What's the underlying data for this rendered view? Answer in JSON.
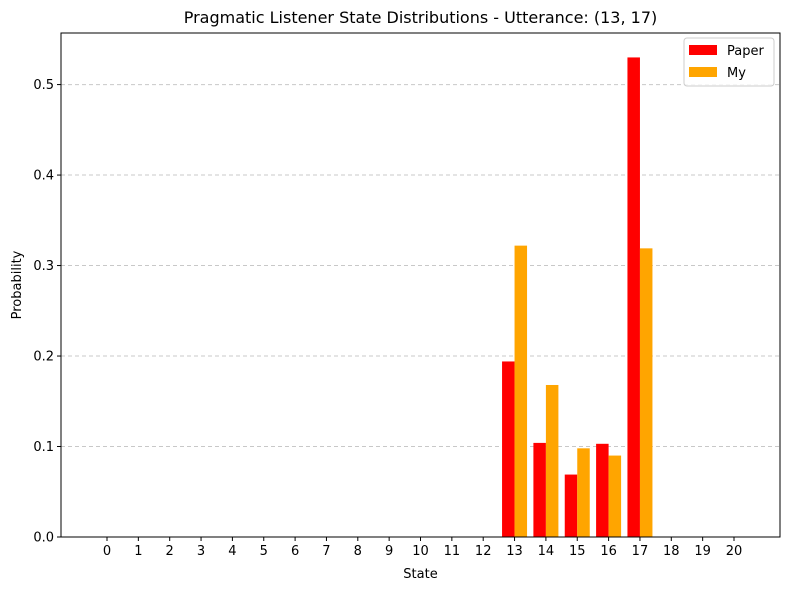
{
  "chart_data": {
    "type": "bar",
    "title": "Pragmatic Listener State Distributions - Utterance: (13, 17)",
    "xlabel": "State",
    "ylabel": "Probability",
    "categories": [
      "0",
      "1",
      "2",
      "3",
      "4",
      "5",
      "6",
      "7",
      "8",
      "9",
      "10",
      "11",
      "12",
      "13",
      "14",
      "15",
      "16",
      "17",
      "18",
      "19",
      "20"
    ],
    "series": [
      {
        "name": "Paper",
        "color": "#ff0000",
        "values": [
          0,
          0,
          0,
          0,
          0,
          0,
          0,
          0,
          0,
          0,
          0,
          0,
          0,
          0.194,
          0.104,
          0.069,
          0.103,
          0.53,
          0,
          0,
          0
        ]
      },
      {
        "name": "My",
        "color": "#ffa500",
        "values": [
          0,
          0,
          0,
          0,
          0,
          0,
          0,
          0,
          0,
          0,
          0,
          0,
          0,
          0.322,
          0.168,
          0.098,
          0.09,
          0.319,
          0,
          0,
          0
        ]
      }
    ],
    "yticks": [
      "0.0",
      "0.1",
      "0.2",
      "0.3",
      "0.4",
      "0.5"
    ],
    "ylim": [
      0,
      0.557
    ],
    "grid": "y-dashed",
    "legend_position": "top-right"
  }
}
